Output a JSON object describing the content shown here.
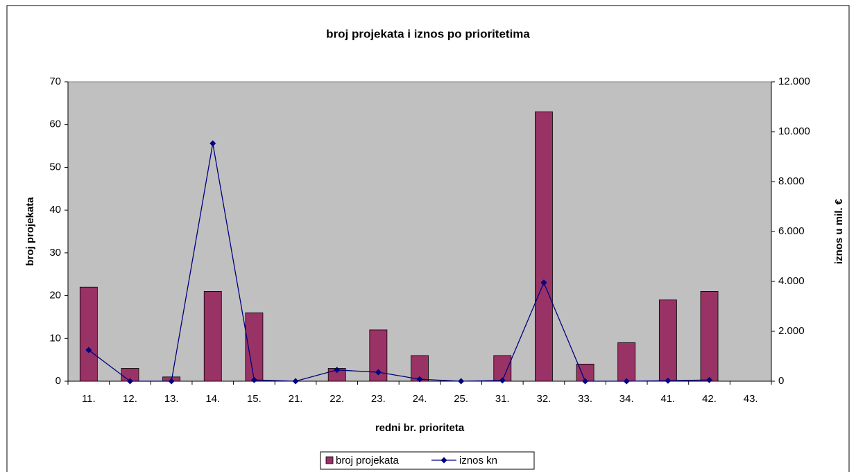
{
  "chart_data": {
    "type": "bar-line",
    "title": "broj projekata i iznos po prioritetima",
    "x_label": "redni br. prioriteta",
    "y_label": "broj projekata",
    "y2_label": "iznos u mil. €",
    "categories": [
      "11.",
      "12.",
      "13.",
      "14.",
      "15.",
      "21.",
      "22.",
      "23.",
      "24.",
      "25.",
      "31.",
      "32.",
      "33.",
      "34.",
      "41.",
      "42.",
      "43."
    ],
    "series": [
      {
        "name": "broj projekata",
        "type": "bar",
        "color": "#993366",
        "axis": "y",
        "values": [
          22,
          3,
          1,
          21,
          16,
          0,
          3,
          12,
          6,
          0,
          6,
          63,
          4,
          9,
          19,
          21,
          null
        ]
      },
      {
        "name": "iznos kn",
        "type": "line",
        "color": "#000080",
        "axis": "y2",
        "values": [
          1250,
          0,
          0,
          9530,
          50,
          0,
          450,
          360,
          80,
          0,
          30,
          3950,
          0,
          0,
          20,
          50,
          null
        ]
      }
    ],
    "ylim": [
      0,
      70
    ],
    "yticks": [
      0,
      10,
      20,
      30,
      40,
      50,
      60,
      70
    ],
    "y2lim": [
      0,
      12000
    ],
    "y2ticks": [
      0,
      {
        "value": 2000,
        "label": "2.000"
      },
      {
        "value": 4000,
        "label": "4.000"
      },
      {
        "value": 6000,
        "label": "6.000"
      },
      {
        "value": 8000,
        "label": "8.000"
      },
      {
        "value": 10000,
        "label": "10.000"
      },
      {
        "value": 12000,
        "label": "12.000"
      }
    ],
    "grid": false,
    "legend": "bottom",
    "plot_background": "#c0c0c0"
  }
}
